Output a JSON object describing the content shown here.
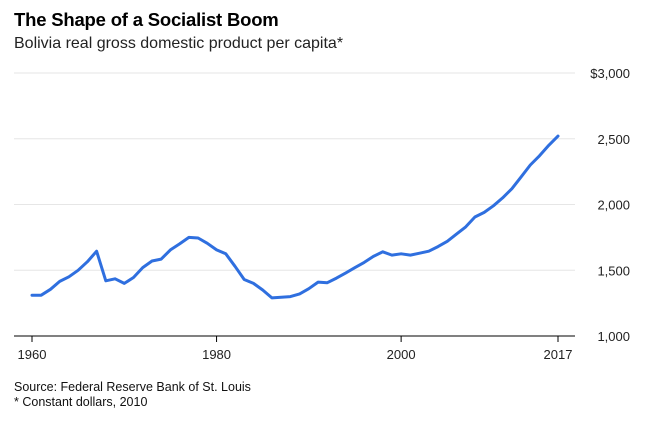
{
  "header": {
    "title": "The Shape of a Socialist Boom",
    "subtitle": "Bolivia real gross domestic product per capita*"
  },
  "footer": {
    "source": "Source: Federal Reserve Bank of St. Louis",
    "note": "* Constant dollars, 2010"
  },
  "colors": {
    "line": "#2f6fdf",
    "grid": "#e6e6e6",
    "axis": "#000000"
  },
  "chart_data": {
    "type": "line",
    "title": "The Shape of a Socialist Boom",
    "subtitle": "Bolivia real gross domestic product per capita*",
    "xlabel": "",
    "ylabel": "",
    "xlim": [
      1960,
      2017
    ],
    "ylim": [
      1000,
      3000
    ],
    "x_ticks": [
      {
        "value": 1960,
        "label": "1960"
      },
      {
        "value": 1980,
        "label": "1980"
      },
      {
        "value": 2000,
        "label": "2000"
      },
      {
        "value": 2017,
        "label": "2017"
      }
    ],
    "y_ticks": [
      {
        "value": 3000,
        "label": "$3,000"
      },
      {
        "value": 2500,
        "label": "2,500"
      },
      {
        "value": 2000,
        "label": "2,000"
      },
      {
        "value": 1500,
        "label": "1,500"
      },
      {
        "value": 1000,
        "label": "1,000"
      }
    ],
    "grid": true,
    "y_axis_side": "right",
    "series": [
      {
        "x": [
          1960,
          1961,
          1962,
          1963,
          1964,
          1965,
          1966,
          1967,
          1968,
          1969,
          1970,
          1971,
          1972,
          1973,
          1974,
          1975,
          1976,
          1977,
          1978,
          1979,
          1980,
          1981,
          1982,
          1983,
          1984,
          1985,
          1986,
          1987,
          1988,
          1989,
          1990,
          1991,
          1992,
          1993,
          1994,
          1995,
          1996,
          1997,
          1998,
          1999,
          2000,
          2001,
          2002,
          2003,
          2004,
          2005,
          2006,
          2007,
          2008,
          2009,
          2010,
          2011,
          2012,
          2013,
          2014,
          2015,
          2016,
          2017
        ],
        "y": [
          1310,
          1310,
          1355,
          1415,
          1450,
          1500,
          1565,
          1645,
          1420,
          1435,
          1400,
          1445,
          1520,
          1570,
          1585,
          1655,
          1700,
          1750,
          1745,
          1705,
          1655,
          1625,
          1530,
          1430,
          1400,
          1350,
          1290,
          1295,
          1300,
          1320,
          1360,
          1410,
          1405,
          1440,
          1480,
          1520,
          1560,
          1605,
          1640,
          1615,
          1625,
          1615,
          1630,
          1645,
          1680,
          1720,
          1775,
          1830,
          1905,
          1940,
          1990,
          2050,
          2120,
          2210,
          2300,
          2370,
          2450,
          2520
        ]
      }
    ]
  }
}
